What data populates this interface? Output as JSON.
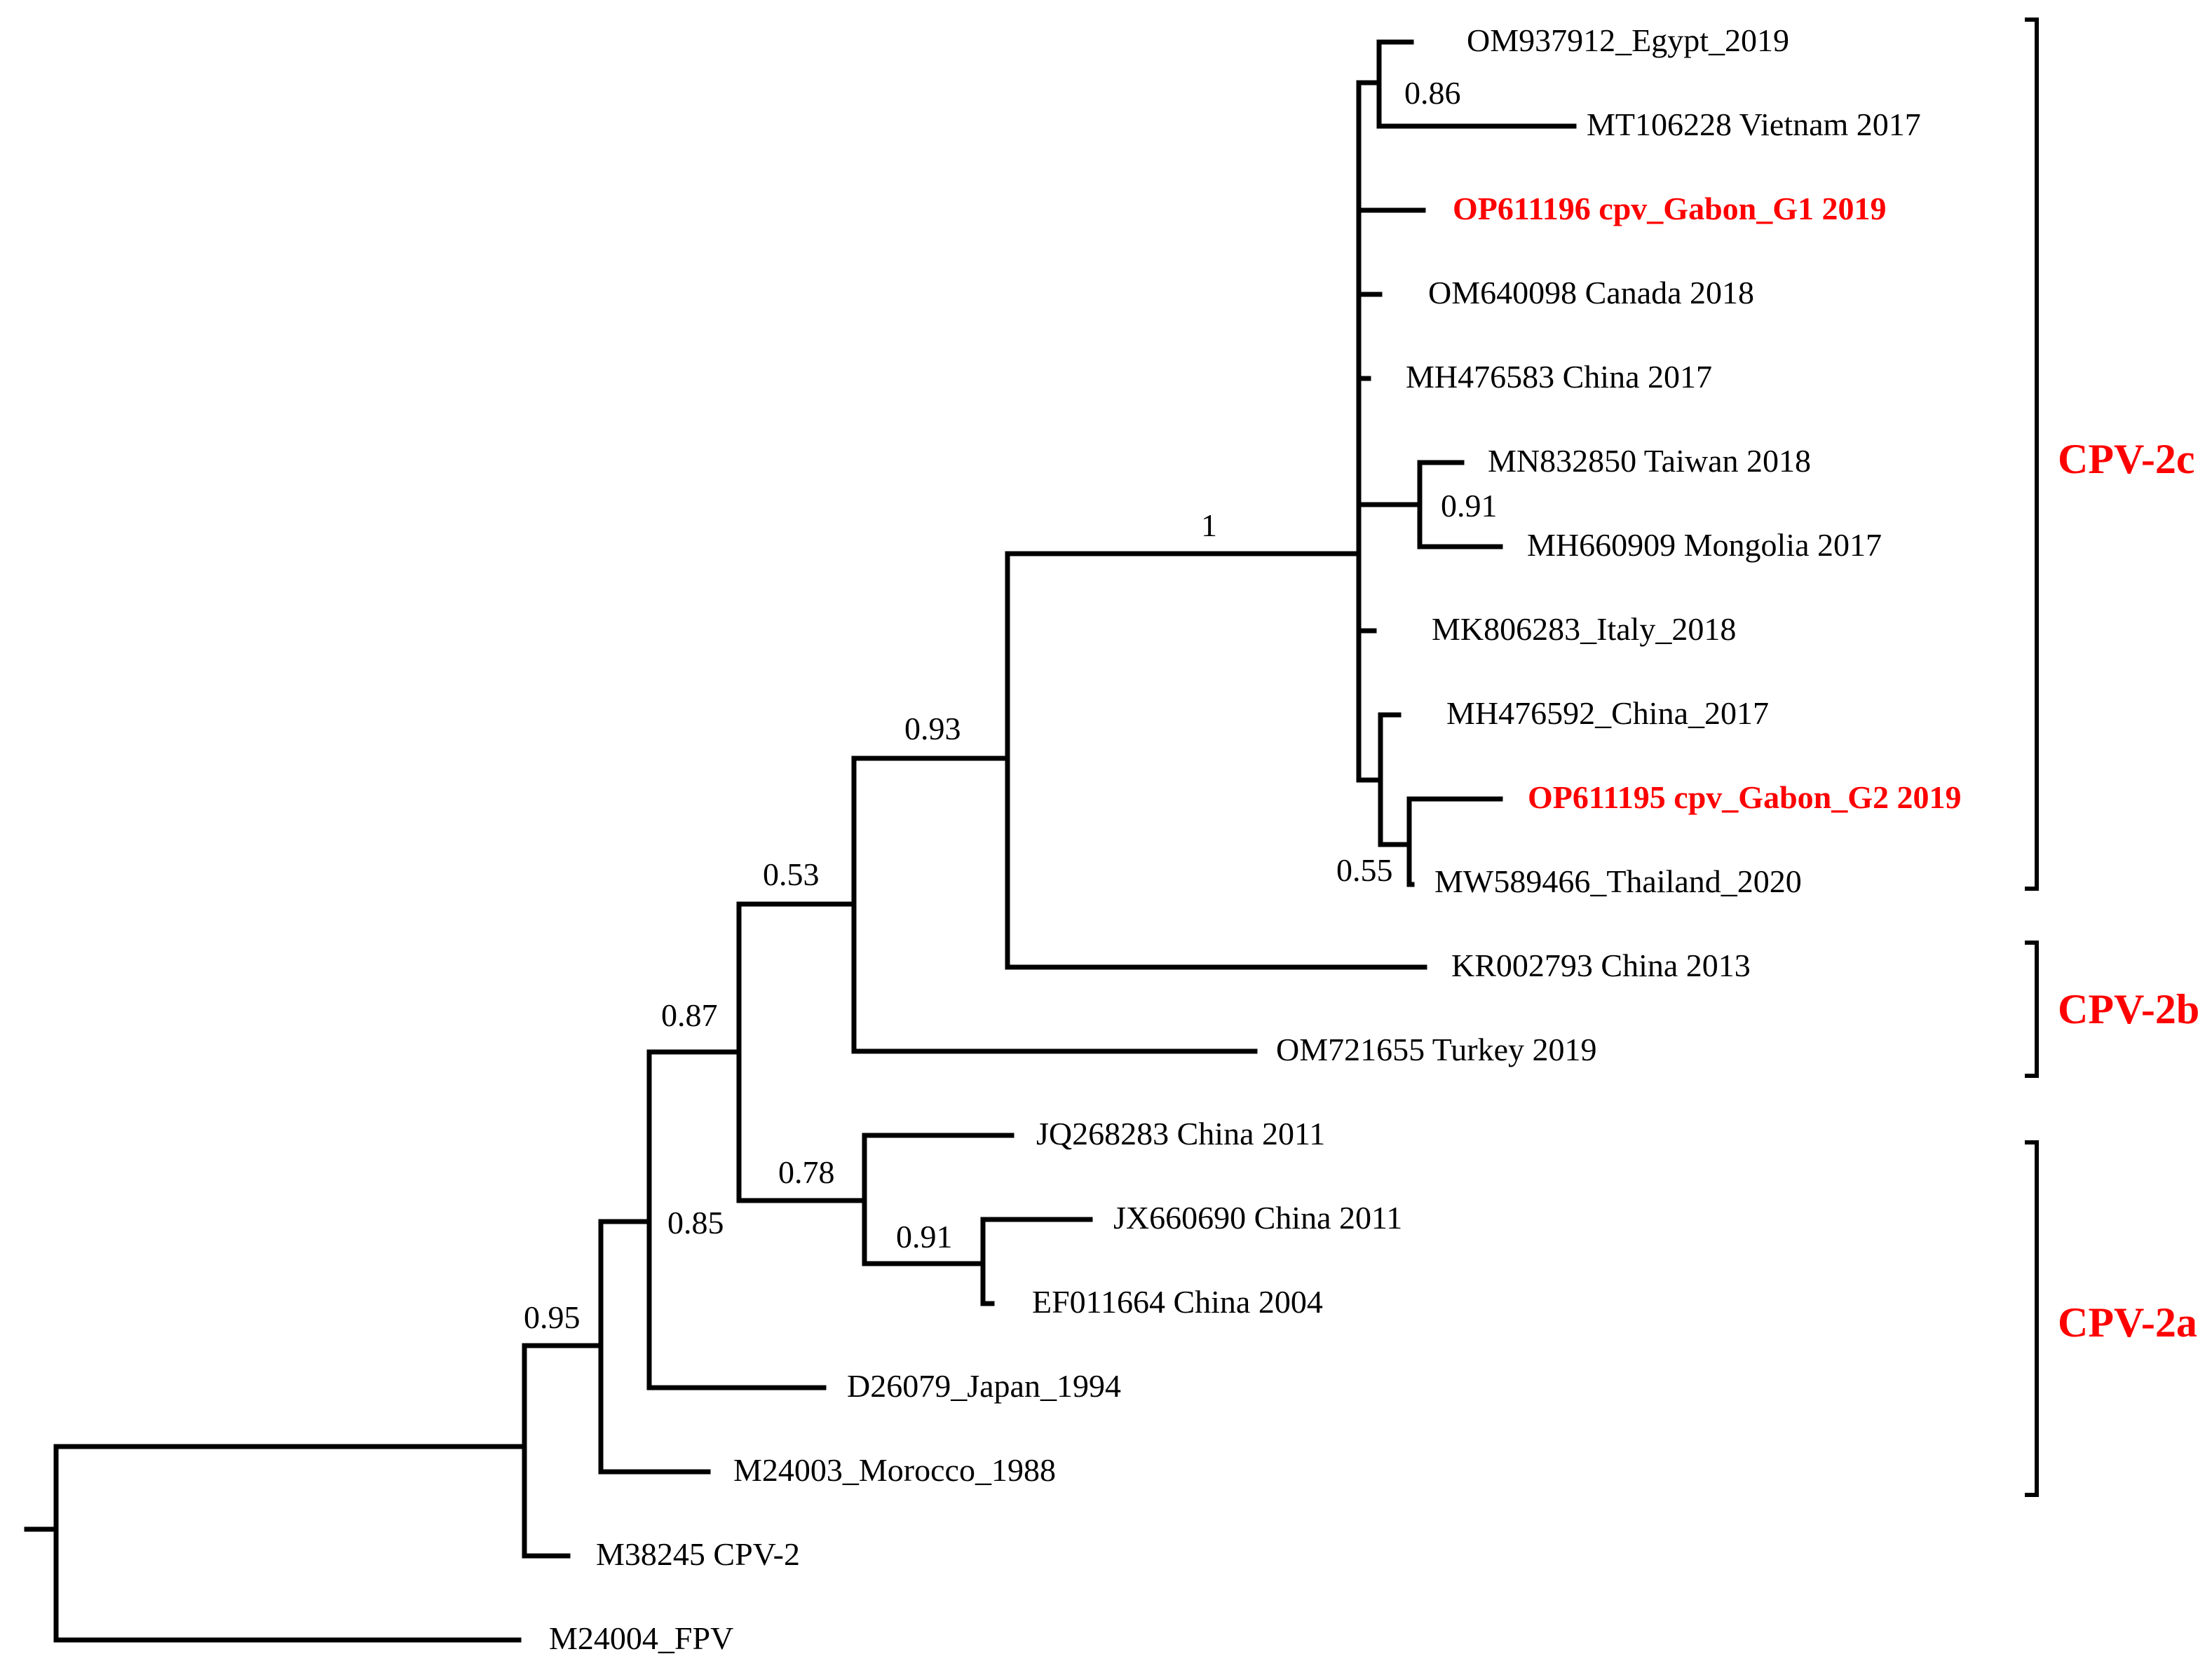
{
  "figure": "phylogenetic-tree",
  "colors": {
    "branch": "#000000",
    "text": "#000000",
    "highlight": "#ff0000"
  },
  "leaves": [
    {
      "label": "OM937912_Egypt_2019",
      "highlight": false
    },
    {
      "label": "MT106228 Vietnam 2017",
      "highlight": false
    },
    {
      "label": "OP611196 cpv_Gabon_G1 2019",
      "highlight": true
    },
    {
      "label": "OM640098 Canada 2018",
      "highlight": false
    },
    {
      "label": "MH476583 China 2017",
      "highlight": false
    },
    {
      "label": "MN832850 Taiwan 2018",
      "highlight": false
    },
    {
      "label": "MH660909 Mongolia 2017",
      "highlight": false
    },
    {
      "label": "MK806283_Italy_2018",
      "highlight": false
    },
    {
      "label": "MH476592_China_2017",
      "highlight": false
    },
    {
      "label": "OP611195 cpv_Gabon_G2 2019",
      "highlight": true
    },
    {
      "label": "MW589466_Thailand_2020",
      "highlight": false
    },
    {
      "label": "KR002793 China 2013",
      "highlight": false
    },
    {
      "label": "OM721655 Turkey 2019",
      "highlight": false
    },
    {
      "label": "JQ268283 China 2011",
      "highlight": false
    },
    {
      "label": "JX660690 China 2011",
      "highlight": false
    },
    {
      "label": "EF011664 China 2004",
      "highlight": false
    },
    {
      "label": "D26079_Japan_1994",
      "highlight": false
    },
    {
      "label": "M24003_Morocco_1988",
      "highlight": false
    },
    {
      "label": "M38245 CPV-2",
      "highlight": false
    },
    {
      "label": "M24004_FPV",
      "highlight": false
    }
  ],
  "support_values": [
    {
      "node": "egypt-vietnam",
      "value": "0.86"
    },
    {
      "node": "taiwan-mongolia",
      "value": "0.91"
    },
    {
      "node": "gabon-g2-thailand",
      "value": "0.55"
    },
    {
      "node": "cpv-2c",
      "value": "1"
    },
    {
      "node": "cpv-2c-2b",
      "value": "0.93"
    },
    {
      "node": "turkey-plus",
      "value": "0.53"
    },
    {
      "node": "cpv-2a-2b-2c",
      "value": "0.87"
    },
    {
      "node": "jq-jx-ef",
      "value": "0.78"
    },
    {
      "node": "jx-ef",
      "value": "0.91"
    },
    {
      "node": "japan-plus",
      "value": "0.85"
    },
    {
      "node": "morocco-plus",
      "value": "0.95"
    }
  ],
  "clades": [
    {
      "label": "CPV-2c",
      "color": "#ff0000"
    },
    {
      "label": "CPV-2b",
      "color": "#ff0000"
    },
    {
      "label": "CPV-2a",
      "color": "#ff0000"
    }
  ]
}
